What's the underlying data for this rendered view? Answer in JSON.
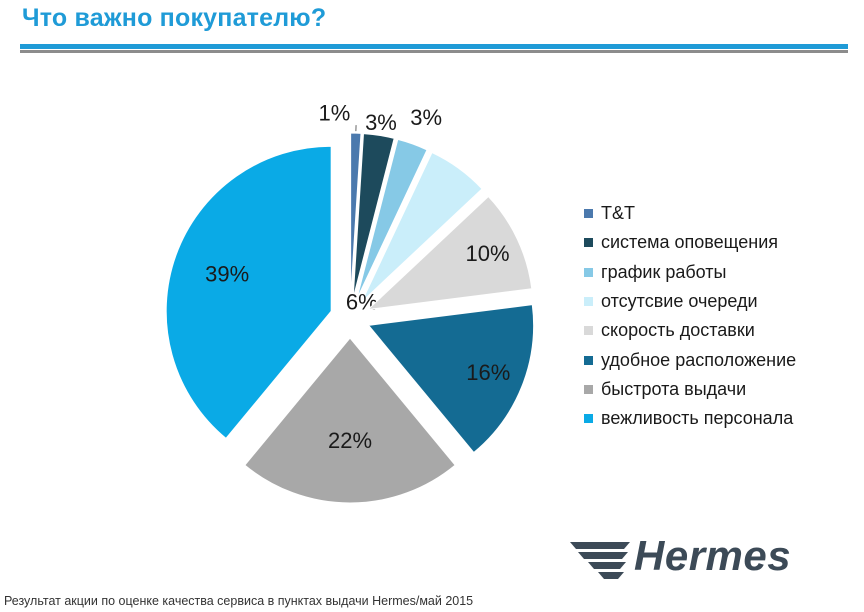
{
  "title": "Что важно покупателю?",
  "footer": "Результат акции по оценке качества сервиса в пунктах выдачи Hermes/май 2015",
  "logo": {
    "text": "Hermes",
    "color": "#3c4a57"
  },
  "chart_data": {
    "type": "pie",
    "legend_position": "right",
    "series": [
      {
        "label": "T&T",
        "value": 1,
        "display": "1%",
        "color": "#4b79ad"
      },
      {
        "label": "система оповещения",
        "value": 3,
        "display": "3%",
        "color": "#1d4a5c"
      },
      {
        "label": "график работы",
        "value": 3,
        "display": "3%",
        "color": "#86c9e6"
      },
      {
        "label": "отсутсвие очереди",
        "value": 6,
        "display": "6%",
        "color": "#caeefa"
      },
      {
        "label": "скорость доставки",
        "value": 10,
        "display": "10%",
        "color": "#d9d9d9"
      },
      {
        "label": "удобное расположение",
        "value": 16,
        "display": "16%",
        "color": "#146b93"
      },
      {
        "label": "быстрота выдачи",
        "value": 22,
        "display": "22%",
        "color": "#a8a8a8"
      },
      {
        "label": "вежливость персонала",
        "value": 39,
        "display": "39%",
        "color": "#0aaae6"
      }
    ]
  }
}
